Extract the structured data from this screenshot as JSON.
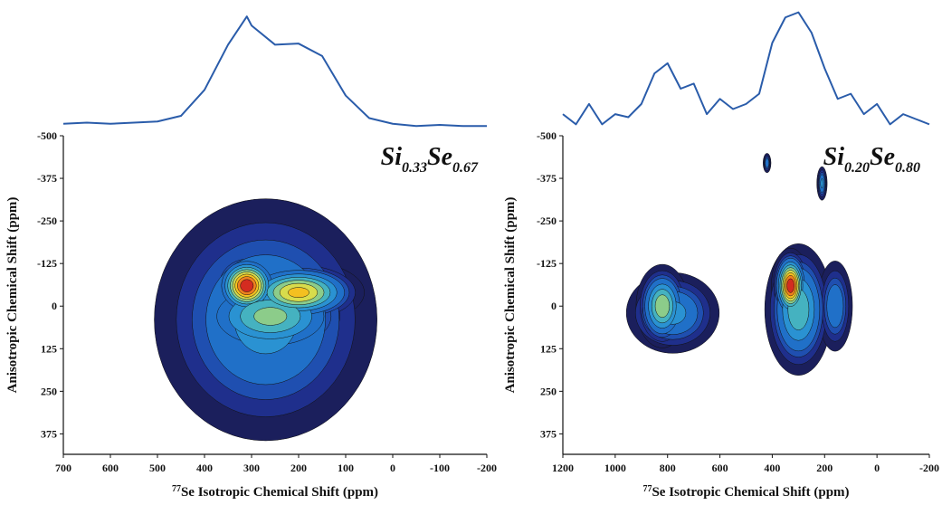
{
  "chart_data": [
    {
      "type": "contour",
      "title": [
        "Si",
        "0.33",
        "Se",
        "0.67"
      ],
      "xlabel_sup": "77",
      "xlabel": "Se Isotropic Chemical Shift (ppm)",
      "ylabel": "Anisotropic Chemical Shift (ppm)",
      "xlim": [
        700,
        -200
      ],
      "xticks": [
        700,
        600,
        500,
        400,
        300,
        200,
        100,
        0,
        -100,
        -200
      ],
      "ylim": [
        -500,
        435
      ],
      "yticks": [
        -500,
        -375,
        -250,
        -125,
        0,
        125,
        250,
        375
      ],
      "levels": [
        0.05,
        0.1,
        0.15,
        0.2,
        0.3,
        0.4,
        0.5,
        0.6,
        0.7,
        0.8,
        0.9
      ],
      "colors": [
        "#1b1f5c",
        "#1f2f8c",
        "#1f4fb0",
        "#2070c8",
        "#2a92d2",
        "#45b2c0",
        "#8ccc8a",
        "#d8dc4c",
        "#f4c020",
        "#f0801e",
        "#d42c20"
      ],
      "peaks": [
        {
          "x": 270,
          "y": 40,
          "sx": 120,
          "sy": 180,
          "amp": 0.35
        },
        {
          "x": 260,
          "y": 30,
          "sx": 80,
          "sy": 60,
          "amp": 0.55
        },
        {
          "x": 200,
          "y": -40,
          "sx": 60,
          "sy": 40,
          "amp": 0.75
        },
        {
          "x": 310,
          "y": -60,
          "sx": 30,
          "sy": 40,
          "amp": 1.0
        }
      ],
      "projection": {
        "color": "#2a5caa",
        "ylim": [
          0,
          105
        ],
        "x": [
          700,
          650,
          600,
          550,
          500,
          450,
          400,
          350,
          310,
          300,
          250,
          200,
          150,
          100,
          50,
          0,
          -50,
          -100,
          -150,
          -200
        ],
        "values": [
          5,
          6,
          5,
          6,
          7,
          12,
          35,
          75,
          100,
          92,
          75,
          76,
          65,
          30,
          10,
          5,
          3,
          4,
          3,
          3
        ]
      }
    },
    {
      "type": "contour",
      "title": [
        "Si",
        "0.20",
        "Se",
        "0.80"
      ],
      "xlabel_sup": "77",
      "xlabel": "Se Isotropic Chemical Shift (ppm)",
      "ylabel": "Anisotropic Chemical Shift (ppm)",
      "xlim": [
        1200,
        -200
      ],
      "xticks": [
        1200,
        1000,
        800,
        600,
        400,
        200,
        0,
        -200
      ],
      "ylim": [
        -500,
        435
      ],
      "yticks": [
        -500,
        -375,
        -250,
        -125,
        0,
        125,
        250,
        375
      ],
      "levels": [
        0.05,
        0.1,
        0.15,
        0.2,
        0.3,
        0.4,
        0.5,
        0.6,
        0.7,
        0.8,
        0.9
      ],
      "colors": [
        "#1b1f5c",
        "#1f2f8c",
        "#1f4fb0",
        "#2070c8",
        "#2a92d2",
        "#45b2c0",
        "#8ccc8a",
        "#d8dc4c",
        "#f4c020",
        "#f0801e",
        "#d42c20"
      ],
      "peaks": [
        {
          "x": 780,
          "y": 20,
          "sx": 90,
          "sy": 60,
          "amp": 0.35
        },
        {
          "x": 820,
          "y": 0,
          "sx": 45,
          "sy": 55,
          "amp": 0.6
        },
        {
          "x": 300,
          "y": 10,
          "sx": 60,
          "sy": 90,
          "amp": 0.5
        },
        {
          "x": 160,
          "y": 0,
          "sx": 35,
          "sy": 70,
          "amp": 0.3
        },
        {
          "x": 330,
          "y": -60,
          "sx": 30,
          "sy": 45,
          "amp": 1.0
        },
        {
          "x": 420,
          "y": -420,
          "sx": 8,
          "sy": 15,
          "amp": 0.3
        },
        {
          "x": 210,
          "y": -360,
          "sx": 10,
          "sy": 25,
          "amp": 0.35
        }
      ],
      "projection": {
        "color": "#2a5caa",
        "ylim": [
          0,
          120
        ],
        "x": [
          1200,
          1150,
          1100,
          1050,
          1000,
          950,
          900,
          850,
          800,
          750,
          700,
          650,
          600,
          550,
          500,
          450,
          400,
          350,
          300,
          250,
          200,
          150,
          100,
          50,
          0,
          -50,
          -100,
          -150,
          -200
        ],
        "values": [
          15,
          5,
          25,
          5,
          15,
          12,
          25,
          55,
          65,
          40,
          45,
          15,
          30,
          20,
          25,
          35,
          85,
          110,
          115,
          95,
          60,
          30,
          35,
          15,
          25,
          5,
          15,
          10,
          5
        ]
      }
    }
  ]
}
